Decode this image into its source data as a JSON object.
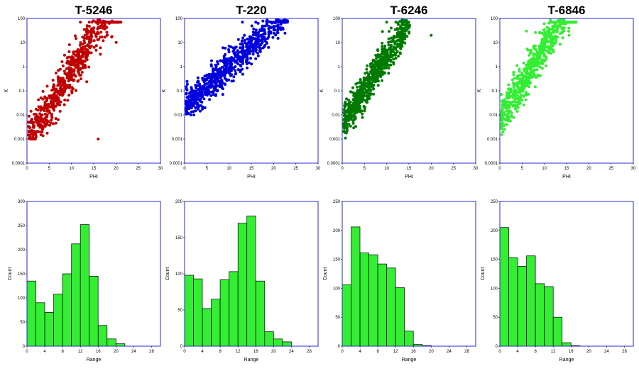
{
  "chart_data": [
    {
      "panel": "scatter",
      "type": "scatter",
      "title": "T-5246",
      "xlabel": "PHI",
      "ylabel": "K",
      "xlim": [
        0,
        30
      ],
      "ylim": [
        0.0001,
        100
      ],
      "log_y": true,
      "x_ticks": [
        "0",
        "5",
        "10",
        "15",
        "20",
        "25",
        "30"
      ],
      "y_ticks": [
        "0.0001",
        "0.001",
        "0.01",
        "0.1",
        "1",
        "10",
        "100"
      ],
      "color": "#c00000",
      "cloud": {
        "slope": 0.3,
        "intercept": -3.2,
        "x_range": [
          0,
          21
        ],
        "spread": 0.45,
        "n": 700,
        "floor": 0.001
      },
      "outliers": [
        [
          16,
          0.001
        ],
        [
          12,
          70
        ],
        [
          14,
          70
        ]
      ]
    },
    {
      "panel": "scatter",
      "type": "scatter",
      "title": "T-220",
      "xlabel": "PHI",
      "ylabel": "K",
      "xlim": [
        0,
        30
      ],
      "ylim": [
        0.0001,
        100
      ],
      "log_y": true,
      "x_ticks": [
        "0",
        "5",
        "10",
        "15",
        "20",
        "25",
        "30"
      ],
      "y_ticks": [
        "0.0001",
        "0.001",
        "0.01",
        "0.1",
        "1",
        "10",
        "100"
      ],
      "color": "#0000dd",
      "cloud": {
        "slope": 0.17,
        "intercept": -1.7,
        "x_range": [
          0,
          23
        ],
        "spread": 0.35,
        "n": 750,
        "floor": 0.01
      },
      "outliers": [
        [
          13,
          70
        ],
        [
          16,
          70
        ],
        [
          21,
          15
        ]
      ]
    },
    {
      "panel": "scatter",
      "type": "scatter",
      "title": "T-6246",
      "xlabel": "PHI",
      "ylabel": "K",
      "xlim": [
        0,
        30
      ],
      "ylim": [
        0.0001,
        100
      ],
      "log_y": true,
      "x_ticks": [
        "0",
        "5",
        "10",
        "15",
        "20",
        "25",
        "30"
      ],
      "y_ticks": [
        "0.0001",
        "0.001",
        "0.01",
        "0.1",
        "1",
        "10",
        "100"
      ],
      "color": "#007a00",
      "cloud": {
        "slope": 0.28,
        "intercept": -2.4,
        "x_range": [
          0,
          15
        ],
        "spread": 0.35,
        "n": 750,
        "floor": 0.001
      },
      "outliers": [
        [
          10,
          70
        ],
        [
          20,
          20
        ],
        [
          11,
          40
        ]
      ]
    },
    {
      "panel": "scatter",
      "type": "scatter",
      "title": "T-6846",
      "xlabel": "PHI",
      "ylabel": "K",
      "xlim": [
        0,
        30
      ],
      "ylim": [
        0.0001,
        100
      ],
      "log_y": true,
      "x_ticks": [
        "0",
        "5",
        "10",
        "15",
        "20",
        "25",
        "30"
      ],
      "y_ticks": [
        "0.0001",
        "0.001",
        "0.01",
        "0.1",
        "1",
        "10",
        "100"
      ],
      "color": "#33ee33",
      "cloud": {
        "slope": 0.3,
        "intercept": -2.2,
        "x_range": [
          0,
          17
        ],
        "spread": 0.4,
        "n": 700,
        "floor": 0.001
      },
      "outliers": [
        [
          10,
          60
        ],
        [
          6,
          30
        ],
        [
          9,
          25
        ]
      ]
    },
    {
      "panel": "hist",
      "type": "bar",
      "xlabel": "Range",
      "ylabel": "Count",
      "xlim": [
        0,
        30
      ],
      "ylim": [
        0,
        300
      ],
      "bin_width": 2,
      "x_ticks": [
        "0",
        "4",
        "8",
        "12",
        "16",
        "20",
        "24",
        "28"
      ],
      "y_ticks": [
        "0",
        "50",
        "100",
        "150",
        "200",
        "250",
        "300"
      ],
      "bar_color": "#33ee33",
      "values": [
        135,
        90,
        70,
        108,
        150,
        212,
        252,
        145,
        43,
        15,
        5
      ]
    },
    {
      "panel": "hist",
      "type": "bar",
      "xlabel": "Range",
      "ylabel": "Count",
      "xlim": [
        0,
        30
      ],
      "ylim": [
        0,
        200
      ],
      "bin_width": 2,
      "x_ticks": [
        "0",
        "4",
        "8",
        "12",
        "16",
        "20",
        "24",
        "28"
      ],
      "y_ticks": [
        "0",
        "50",
        "100",
        "150",
        "200"
      ],
      "bar_color": "#33ee33",
      "values": [
        98,
        93,
        52,
        65,
        92,
        103,
        170,
        180,
        90,
        20,
        10,
        6
      ]
    },
    {
      "panel": "hist",
      "type": "bar",
      "xlabel": "Range",
      "ylabel": "Count",
      "xlim": [
        0,
        30
      ],
      "ylim": [
        0,
        250
      ],
      "bin_width": 2,
      "x_ticks": [
        "0",
        "4",
        "8",
        "12",
        "16",
        "20",
        "24",
        "28"
      ],
      "y_ticks": [
        "0",
        "50",
        "100",
        "150",
        "200",
        "250"
      ],
      "bar_color": "#33ee33",
      "values": [
        106,
        206,
        161,
        158,
        142,
        135,
        101,
        26,
        3,
        1
      ]
    },
    {
      "panel": "hist",
      "type": "bar",
      "xlabel": "Range",
      "ylabel": "Count",
      "xlim": [
        0,
        30
      ],
      "ylim": [
        0,
        250
      ],
      "bin_width": 2,
      "x_ticks": [
        "0",
        "4",
        "8",
        "12",
        "16",
        "20",
        "24",
        "28"
      ],
      "y_ticks": [
        "0",
        "50",
        "100",
        "150",
        "200",
        "250"
      ],
      "bar_color": "#33ee33",
      "values": [
        205,
        153,
        138,
        156,
        108,
        103,
        50,
        6,
        1
      ]
    }
  ]
}
